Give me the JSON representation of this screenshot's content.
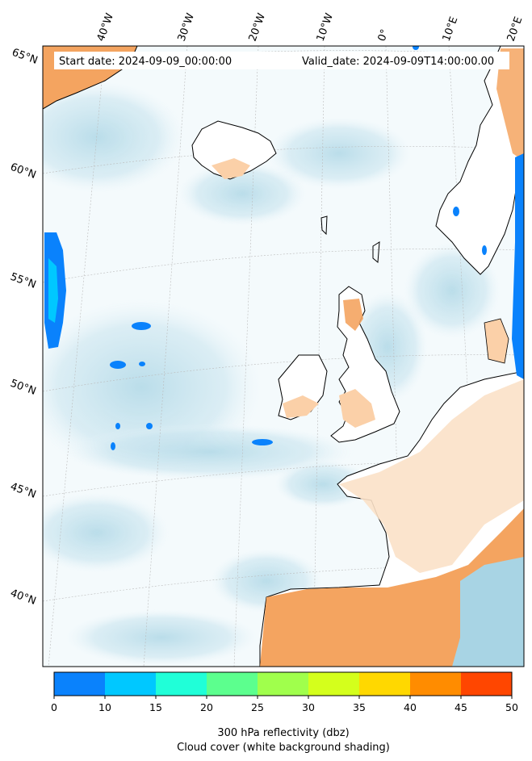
{
  "header": {
    "start_date": "Start date: 2024-09-09_00:00:00",
    "valid_date": "Valid_date: 2024-09-09T14:00:00.00"
  },
  "lon_labels": [
    "40°W",
    "30°W",
    "20°W",
    "10°W",
    "0°",
    "10°E",
    "20°E"
  ],
  "lat_labels": [
    "65°N",
    "60°N",
    "55°N",
    "50°N",
    "45°N",
    "40°N"
  ],
  "colorbar": {
    "ticks": [
      "0",
      "10",
      "15",
      "20",
      "25",
      "30",
      "35",
      "40",
      "45",
      "50"
    ],
    "colors": [
      "#0a82fc",
      "#00c8ff",
      "#20ffd8",
      "#5cff8e",
      "#a0ff4c",
      "#d4ff1c",
      "#ffd800",
      "#ff8c00",
      "#ff4600"
    ],
    "title_line1": "300 hPa reflectivity (dbz)",
    "title_line2": "Cloud cover (white background shading)"
  },
  "colors": {
    "cloud_light": "#d9eef5",
    "cloud_mid": "#b9dde9",
    "land_warm": "#f4a460",
    "land_pale": "#fbe1c8",
    "coast": "#000000",
    "grid": "#bbbbbb"
  }
}
